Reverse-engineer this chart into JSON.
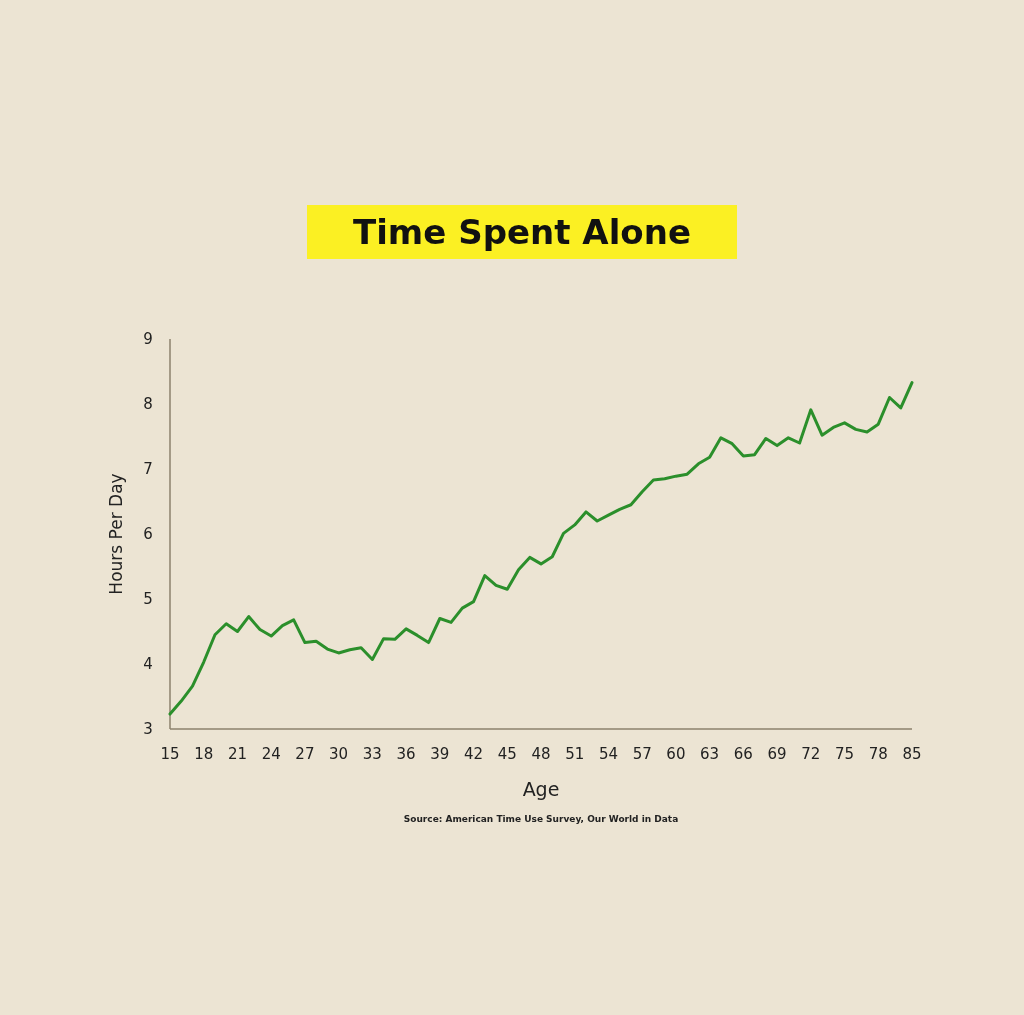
{
  "chart_data": {
    "type": "line",
    "title": "Time Spent Alone",
    "xlabel": "Age",
    "ylabel": "Hours Per Day",
    "categories": [
      "15",
      null,
      null,
      "18",
      null,
      null,
      "21",
      null,
      null,
      "24",
      null,
      null,
      "27",
      null,
      null,
      "30",
      null,
      null,
      "33",
      null,
      null,
      "36",
      null,
      null,
      "39",
      null,
      null,
      "42",
      null,
      null,
      "45",
      null,
      null,
      "48",
      null,
      null,
      "51",
      null,
      null,
      "54",
      null,
      null,
      "57",
      null,
      null,
      "60",
      null,
      null,
      "63",
      null,
      null,
      "66",
      null,
      null,
      "69",
      null,
      null,
      "72",
      null,
      null,
      "75",
      null,
      null,
      "78",
      null,
      null,
      "85"
    ],
    "series": [
      {
        "color": "#2b8f2b",
        "values": [
          3.23,
          3.43,
          3.66,
          4.03,
          4.45,
          4.62,
          4.5,
          4.73,
          4.53,
          4.43,
          4.59,
          4.68,
          4.33,
          4.35,
          4.23,
          4.17,
          4.22,
          4.25,
          4.07,
          4.39,
          4.38,
          4.54,
          4.44,
          4.33,
          4.7,
          4.64,
          4.86,
          4.96,
          5.36,
          5.21,
          5.15,
          5.45,
          5.64,
          5.54,
          5.65,
          6.01,
          6.14,
          6.34,
          6.2,
          6.29,
          6.38,
          6.45,
          6.65,
          6.83,
          6.85,
          6.89,
          6.92,
          7.08,
          7.18,
          7.48,
          7.39,
          7.2,
          7.22,
          7.47,
          7.36,
          7.48,
          7.4,
          7.91,
          7.52,
          7.64,
          7.71,
          7.61,
          7.57,
          7.69,
          8.1,
          7.94,
          8.33
        ]
      }
    ],
    "ylim": [
      3,
      9
    ],
    "yticks": [
      3,
      4,
      5,
      6,
      7,
      8,
      9
    ],
    "grid": false,
    "marker": "none",
    "line_style": "solid",
    "annotations": [
      "Source: American Time Use Survey, Our World in Data"
    ]
  }
}
